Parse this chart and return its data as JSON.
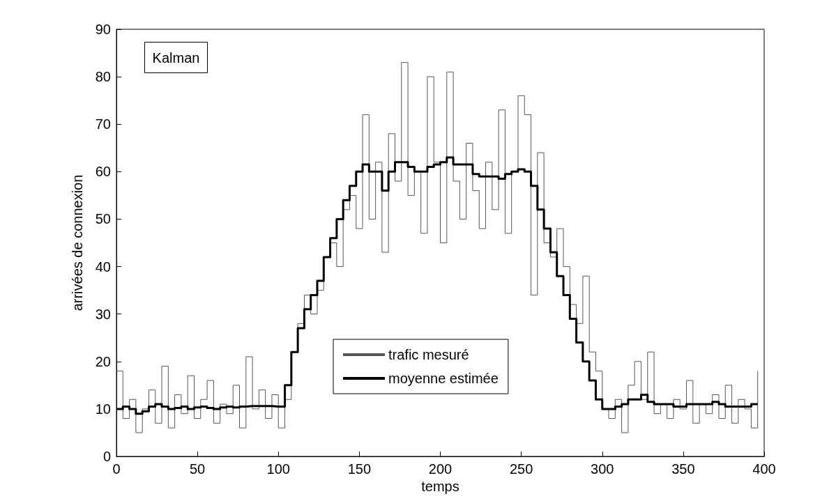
{
  "chart_data": {
    "type": "step",
    "xlabel": "temps",
    "ylabel": "arrivées de connexion",
    "annotations": [
      "Kalman"
    ],
    "x": [
      0,
      4,
      8,
      12,
      16,
      20,
      24,
      28,
      32,
      36,
      40,
      44,
      48,
      52,
      56,
      60,
      64,
      68,
      72,
      76,
      80,
      84,
      88,
      92,
      96,
      100,
      104,
      108,
      112,
      116,
      120,
      124,
      128,
      132,
      136,
      140,
      144,
      148,
      152,
      156,
      160,
      164,
      168,
      172,
      176,
      180,
      184,
      188,
      192,
      196,
      200,
      204,
      208,
      212,
      216,
      220,
      224,
      228,
      232,
      236,
      240,
      244,
      248,
      252,
      256,
      260,
      264,
      268,
      272,
      276,
      280,
      284,
      288,
      292,
      296,
      300,
      304,
      308,
      312,
      316,
      320,
      324,
      328,
      332,
      336,
      340,
      344,
      348,
      352,
      356,
      360,
      364,
      368,
      372,
      376,
      380,
      384,
      388,
      392,
      396
    ],
    "series": [
      {
        "name": "trafic mesuré",
        "color": "#555555",
        "values": [
          18,
          8,
          12,
          5,
          10,
          14,
          7,
          19,
          6,
          13,
          9,
          17,
          8,
          12,
          16,
          7,
          11,
          9,
          15,
          6,
          21,
          10,
          14,
          8,
          13,
          6,
          12,
          22,
          28,
          34,
          30,
          35,
          42,
          45,
          40,
          52,
          55,
          48,
          72,
          50,
          62,
          43,
          68,
          58,
          83,
          55,
          60,
          47,
          80,
          62,
          45,
          81,
          58,
          50,
          66,
          56,
          48,
          62,
          52,
          73,
          47,
          60,
          76,
          72,
          34,
          64,
          45,
          42,
          48,
          40,
          32,
          28,
          38,
          22,
          18,
          10,
          8,
          12,
          5,
          15,
          20,
          12,
          22,
          9,
          11,
          8,
          12,
          10,
          16,
          7,
          11,
          9,
          13,
          8,
          15,
          7,
          12,
          10,
          6,
          18
        ]
      },
      {
        "name": "moyenne estimée",
        "color": "#000000",
        "values": [
          10,
          10.5,
          10,
          9,
          9.5,
          10.5,
          11,
          10.5,
          10,
          10.2,
          10.5,
          10,
          10.3,
          10.5,
          10.2,
          10,
          10.3,
          10.5,
          10.3,
          10.5,
          10.6,
          10.6,
          10.6,
          10.6,
          10.5,
          10.5,
          15,
          22,
          27,
          31,
          34,
          37,
          42,
          46,
          50,
          54,
          57,
          60,
          61.5,
          60,
          60,
          56,
          60,
          62,
          62,
          61,
          60,
          60,
          61,
          61.5,
          62,
          63,
          61.5,
          61.5,
          61.5,
          59.5,
          59,
          59,
          59,
          58.5,
          59.5,
          60,
          60.5,
          60,
          57,
          52,
          48,
          43,
          38,
          34,
          29,
          24,
          20,
          16,
          12,
          10,
          10,
          10.5,
          11,
          12,
          12,
          13,
          11.5,
          11,
          11,
          11,
          10.5,
          10.5,
          11,
          11,
          11,
          11,
          11.5,
          11,
          10.5,
          10.5,
          10.5,
          10.5,
          11,
          11
        ]
      }
    ],
    "xlim": [
      0,
      400
    ],
    "xticks": [
      0,
      50,
      100,
      150,
      200,
      250,
      300,
      350,
      400
    ],
    "ylim": [
      0,
      90
    ],
    "yticks": [
      0,
      10,
      20,
      30,
      40,
      50,
      60,
      70,
      80,
      90
    ],
    "grid": false,
    "legend": "bottom",
    "marker": "none",
    "line_style": "solid"
  }
}
